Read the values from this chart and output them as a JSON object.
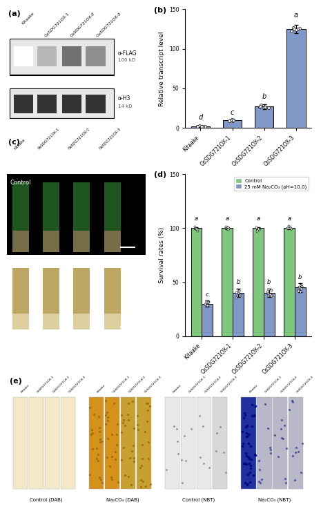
{
  "panel_b": {
    "categories": [
      "Kitaake",
      "OsSDG721OX-1",
      "OsSDG721OX-2",
      "OsSDG721OX-3"
    ],
    "values": [
      2.0,
      10.0,
      27.0,
      125.0
    ],
    "errors": [
      0.5,
      1.5,
      3.0,
      5.0
    ],
    "bar_color": "#8098c8",
    "bar_edge": "#000000",
    "ylabel": "Relative transcript level",
    "ylim": [
      0,
      150
    ],
    "yticks": [
      0,
      50,
      100,
      150
    ],
    "letters": [
      "d",
      "c",
      "b",
      "a"
    ],
    "title": "(b)"
  },
  "panel_d": {
    "categories": [
      "Kitaake",
      "OsSDG721OX-1",
      "OsSDG721OX-2",
      "OsSDG721OX-3"
    ],
    "control_values": [
      100,
      100,
      100,
      100
    ],
    "treatment_values": [
      30,
      40,
      40,
      45
    ],
    "control_errors": [
      1.0,
      1.0,
      1.0,
      1.0
    ],
    "treatment_errors": [
      3.0,
      4.0,
      4.0,
      4.0
    ],
    "control_color": "#7ec87e",
    "treatment_color": "#8098c8",
    "control_label": "Control",
    "treatment_label": "25 mM Na₂CO₃ (pH=10.0)",
    "ylabel": "Survival rates (%)",
    "ylim": [
      0,
      150
    ],
    "yticks": [
      0,
      50,
      100,
      150
    ],
    "control_letters": [
      "a",
      "a",
      "a",
      "a"
    ],
    "treatment_letters": [
      "c",
      "b",
      "b",
      "b"
    ],
    "title": "(d)"
  },
  "bg_color": "#ffffff",
  "panel_a_label": "(a)",
  "panel_c_label": "(c)",
  "panel_e_label": "(e)"
}
